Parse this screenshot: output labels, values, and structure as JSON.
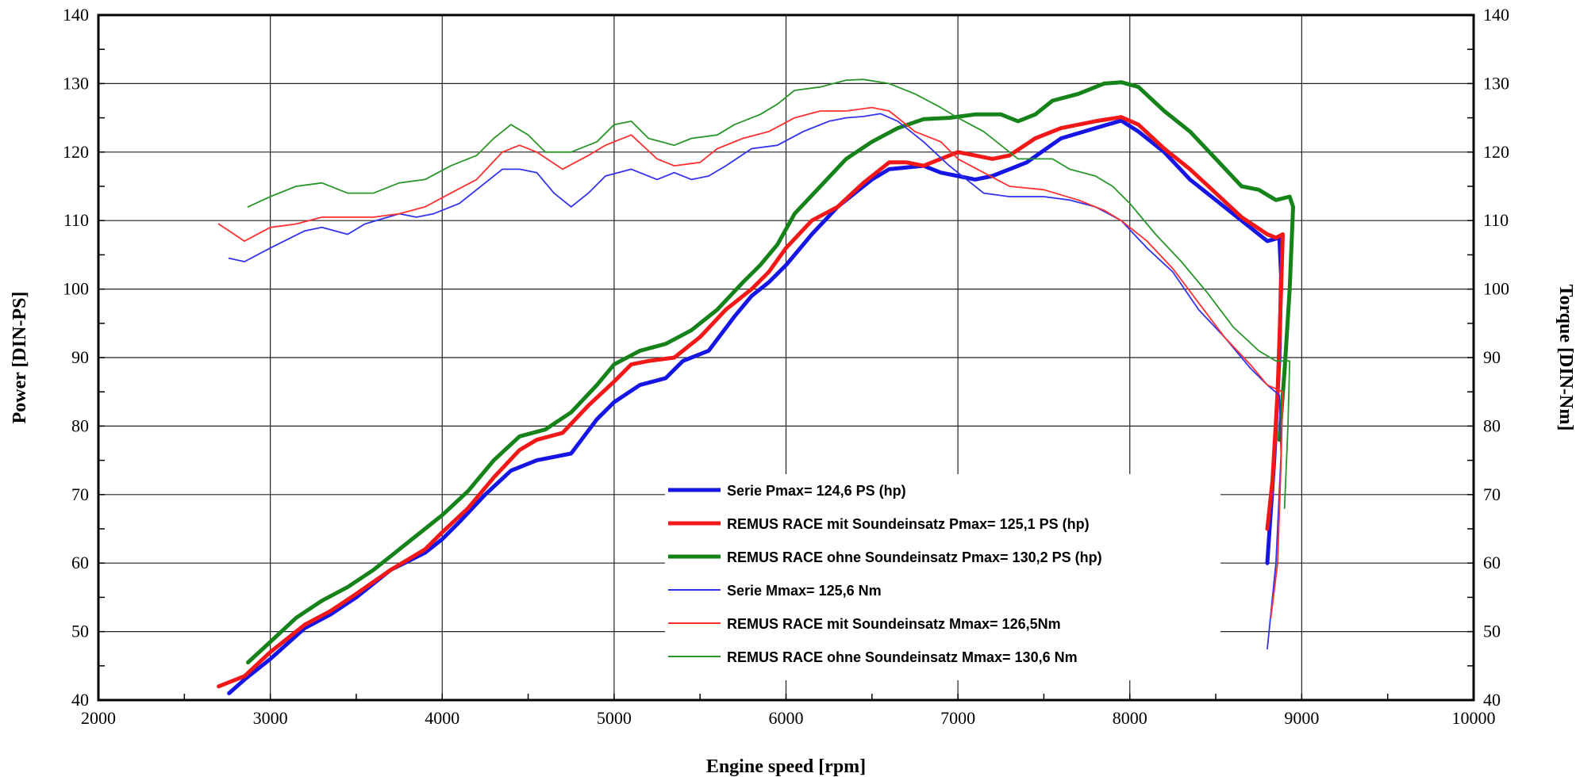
{
  "chart_data": {
    "type": "line",
    "xlabel": "Engine speed [rpm]",
    "ylabel_left": "Power [DIN-PS]",
    "ylabel_right": "Torque [DIN-Nm]",
    "xlim": [
      2000,
      10000
    ],
    "ylim": [
      40,
      140
    ],
    "x_ticks": [
      2000,
      3000,
      4000,
      5000,
      6000,
      7000,
      8000,
      9000,
      10000
    ],
    "y_ticks": [
      40,
      50,
      60,
      70,
      80,
      90,
      100,
      110,
      120,
      130,
      140
    ],
    "grid": true,
    "legend_position": "lower-center",
    "series": [
      {
        "name": "Serie Pmax= 124,6 PS (hp)",
        "color": "#1515e6",
        "thick": true,
        "points": [
          [
            2760,
            41
          ],
          [
            2850,
            43
          ],
          [
            3000,
            46
          ],
          [
            3200,
            50.5
          ],
          [
            3350,
            52.5
          ],
          [
            3500,
            55
          ],
          [
            3700,
            59
          ],
          [
            3900,
            61.5
          ],
          [
            4000,
            63.5
          ],
          [
            4100,
            66
          ],
          [
            4250,
            70
          ],
          [
            4400,
            73.5
          ],
          [
            4550,
            75
          ],
          [
            4750,
            76
          ],
          [
            4900,
            81
          ],
          [
            5000,
            83.5
          ],
          [
            5150,
            86
          ],
          [
            5300,
            87
          ],
          [
            5400,
            89.5
          ],
          [
            5550,
            91
          ],
          [
            5700,
            96
          ],
          [
            5800,
            99
          ],
          [
            5900,
            101
          ],
          [
            6000,
            103.5
          ],
          [
            6150,
            108
          ],
          [
            6300,
            112
          ],
          [
            6400,
            114
          ],
          [
            6500,
            116
          ],
          [
            6600,
            117.5
          ],
          [
            6800,
            118
          ],
          [
            6900,
            117
          ],
          [
            7000,
            116.5
          ],
          [
            7100,
            116
          ],
          [
            7200,
            116.5
          ],
          [
            7400,
            118.5
          ],
          [
            7600,
            122
          ],
          [
            7800,
            123.5
          ],
          [
            7950,
            124.6
          ],
          [
            8050,
            123
          ],
          [
            8200,
            120
          ],
          [
            8350,
            116
          ],
          [
            8500,
            113
          ],
          [
            8650,
            110
          ],
          [
            8800,
            107
          ],
          [
            8870,
            107.5
          ],
          [
            8880,
            102
          ],
          [
            8870,
            90
          ],
          [
            8840,
            75
          ],
          [
            8800,
            60
          ]
        ]
      },
      {
        "name": "REMUS RACE mit Soundeinsatz Pmax=  125,1 PS (hp)",
        "color": "#f21818",
        "thick": true,
        "points": [
          [
            2700,
            42
          ],
          [
            2850,
            43.5
          ],
          [
            3000,
            47
          ],
          [
            3200,
            51
          ],
          [
            3350,
            53
          ],
          [
            3500,
            55.5
          ],
          [
            3700,
            59
          ],
          [
            3900,
            62
          ],
          [
            4000,
            64.5
          ],
          [
            4150,
            68
          ],
          [
            4300,
            72.5
          ],
          [
            4450,
            76.5
          ],
          [
            4550,
            78
          ],
          [
            4700,
            79
          ],
          [
            4850,
            83
          ],
          [
            5000,
            86.5
          ],
          [
            5100,
            89
          ],
          [
            5200,
            89.5
          ],
          [
            5350,
            90
          ],
          [
            5500,
            93
          ],
          [
            5650,
            97
          ],
          [
            5800,
            100
          ],
          [
            5900,
            102.5
          ],
          [
            6000,
            106
          ],
          [
            6150,
            110
          ],
          [
            6300,
            112
          ],
          [
            6450,
            115.5
          ],
          [
            6600,
            118.5
          ],
          [
            6700,
            118.5
          ],
          [
            6800,
            118
          ],
          [
            6900,
            119
          ],
          [
            7000,
            120
          ],
          [
            7100,
            119.5
          ],
          [
            7200,
            119
          ],
          [
            7300,
            119.5
          ],
          [
            7450,
            122
          ],
          [
            7600,
            123.5
          ],
          [
            7800,
            124.5
          ],
          [
            7950,
            125.1
          ],
          [
            8050,
            124
          ],
          [
            8200,
            120.5
          ],
          [
            8350,
            117.5
          ],
          [
            8500,
            114
          ],
          [
            8650,
            110.5
          ],
          [
            8800,
            108
          ],
          [
            8850,
            107.5
          ],
          [
            8890,
            108
          ],
          [
            8880,
            100
          ],
          [
            8860,
            85
          ],
          [
            8830,
            72
          ],
          [
            8800,
            65
          ]
        ]
      },
      {
        "name": "REMUS RACE ohne Soundeinsatz Pmax= 130,2 PS (hp)",
        "color": "#16821a",
        "thick": true,
        "points": [
          [
            2870,
            45.5
          ],
          [
            3000,
            48.5
          ],
          [
            3150,
            52
          ],
          [
            3300,
            54.5
          ],
          [
            3450,
            56.5
          ],
          [
            3600,
            59
          ],
          [
            3750,
            62
          ],
          [
            3900,
            65
          ],
          [
            4000,
            67
          ],
          [
            4150,
            70.5
          ],
          [
            4300,
            75
          ],
          [
            4450,
            78.5
          ],
          [
            4600,
            79.5
          ],
          [
            4750,
            82
          ],
          [
            4900,
            86
          ],
          [
            5000,
            89
          ],
          [
            5150,
            91
          ],
          [
            5300,
            92
          ],
          [
            5450,
            94
          ],
          [
            5600,
            97
          ],
          [
            5750,
            101
          ],
          [
            5850,
            103.5
          ],
          [
            5950,
            106.5
          ],
          [
            6050,
            111
          ],
          [
            6200,
            115
          ],
          [
            6350,
            119
          ],
          [
            6500,
            121.5
          ],
          [
            6650,
            123.5
          ],
          [
            6800,
            124.8
          ],
          [
            6950,
            125
          ],
          [
            7100,
            125.5
          ],
          [
            7250,
            125.5
          ],
          [
            7350,
            124.5
          ],
          [
            7450,
            125.5
          ],
          [
            7550,
            127.5
          ],
          [
            7700,
            128.5
          ],
          [
            7850,
            130
          ],
          [
            7950,
            130.2
          ],
          [
            8050,
            129.5
          ],
          [
            8200,
            126
          ],
          [
            8350,
            123
          ],
          [
            8500,
            119
          ],
          [
            8650,
            115
          ],
          [
            8750,
            114.5
          ],
          [
            8850,
            113
          ],
          [
            8930,
            113.5
          ],
          [
            8950,
            112
          ],
          [
            8930,
            100
          ],
          [
            8900,
            88
          ],
          [
            8870,
            78
          ]
        ]
      },
      {
        "name": "Serie Mmax= 125,6 Nm",
        "color": "#3333ee",
        "thick": false,
        "points": [
          [
            2760,
            104.5
          ],
          [
            2850,
            104
          ],
          [
            3000,
            106
          ],
          [
            3200,
            108.5
          ],
          [
            3300,
            109
          ],
          [
            3450,
            108
          ],
          [
            3550,
            109.5
          ],
          [
            3750,
            111
          ],
          [
            3850,
            110.5
          ],
          [
            3950,
            111
          ],
          [
            4100,
            112.5
          ],
          [
            4250,
            115.5
          ],
          [
            4350,
            117.5
          ],
          [
            4450,
            117.5
          ],
          [
            4550,
            117
          ],
          [
            4650,
            114
          ],
          [
            4750,
            112
          ],
          [
            4850,
            114
          ],
          [
            4950,
            116.5
          ],
          [
            5100,
            117.5
          ],
          [
            5250,
            116
          ],
          [
            5350,
            117
          ],
          [
            5450,
            116
          ],
          [
            5550,
            116.5
          ],
          [
            5650,
            118
          ],
          [
            5800,
            120.5
          ],
          [
            5950,
            121
          ],
          [
            6100,
            123
          ],
          [
            6250,
            124.5
          ],
          [
            6350,
            125
          ],
          [
            6450,
            125.2
          ],
          [
            6550,
            125.6
          ],
          [
            6650,
            124.5
          ],
          [
            6800,
            121.5
          ],
          [
            6950,
            118
          ],
          [
            7050,
            116
          ],
          [
            7150,
            114
          ],
          [
            7300,
            113.5
          ],
          [
            7500,
            113.5
          ],
          [
            7650,
            113
          ],
          [
            7800,
            112
          ],
          [
            7950,
            110
          ],
          [
            8100,
            106
          ],
          [
            8250,
            102.5
          ],
          [
            8400,
            97
          ],
          [
            8550,
            93
          ],
          [
            8700,
            88.5
          ],
          [
            8800,
            86
          ],
          [
            8870,
            84.5
          ],
          [
            8880,
            76
          ],
          [
            8850,
            60
          ],
          [
            8800,
            47.5
          ]
        ]
      },
      {
        "name": "REMUS RACE mit Soundeinsatz Mmax= 126,5Nm",
        "color": "#ff3030",
        "thick": false,
        "points": [
          [
            2700,
            109.5
          ],
          [
            2850,
            107
          ],
          [
            3000,
            109
          ],
          [
            3150,
            109.5
          ],
          [
            3300,
            110.5
          ],
          [
            3450,
            110.5
          ],
          [
            3600,
            110.5
          ],
          [
            3750,
            111
          ],
          [
            3900,
            112
          ],
          [
            4050,
            114
          ],
          [
            4200,
            116
          ],
          [
            4350,
            120
          ],
          [
            4450,
            121
          ],
          [
            4550,
            120
          ],
          [
            4700,
            117.5
          ],
          [
            4850,
            119.5
          ],
          [
            4950,
            121
          ],
          [
            5100,
            122.5
          ],
          [
            5250,
            119
          ],
          [
            5350,
            118
          ],
          [
            5500,
            118.5
          ],
          [
            5600,
            120.5
          ],
          [
            5750,
            122
          ],
          [
            5900,
            123
          ],
          [
            6050,
            125
          ],
          [
            6200,
            126
          ],
          [
            6350,
            126
          ],
          [
            6500,
            126.5
          ],
          [
            6600,
            126
          ],
          [
            6750,
            123
          ],
          [
            6900,
            121.5
          ],
          [
            7000,
            119
          ],
          [
            7150,
            117
          ],
          [
            7300,
            115
          ],
          [
            7500,
            114.5
          ],
          [
            7700,
            113
          ],
          [
            7850,
            111.5
          ],
          [
            7950,
            110
          ],
          [
            8100,
            107
          ],
          [
            8250,
            103
          ],
          [
            8400,
            98
          ],
          [
            8550,
            93
          ],
          [
            8700,
            89
          ],
          [
            8800,
            86
          ],
          [
            8890,
            85
          ],
          [
            8880,
            75
          ],
          [
            8860,
            60
          ],
          [
            8820,
            52
          ]
        ]
      },
      {
        "name": "REMUS RACE ohne Soundeinsatz Mmax= 130,6 Nm",
        "color": "#2a962a",
        "thick": false,
        "points": [
          [
            2870,
            112
          ],
          [
            3000,
            113.5
          ],
          [
            3150,
            115
          ],
          [
            3300,
            115.5
          ],
          [
            3450,
            114
          ],
          [
            3600,
            114
          ],
          [
            3750,
            115.5
          ],
          [
            3900,
            116
          ],
          [
            4050,
            118
          ],
          [
            4200,
            119.5
          ],
          [
            4300,
            122
          ],
          [
            4400,
            124
          ],
          [
            4500,
            122.5
          ],
          [
            4600,
            120
          ],
          [
            4750,
            120
          ],
          [
            4900,
            121.5
          ],
          [
            5000,
            124
          ],
          [
            5100,
            124.5
          ],
          [
            5200,
            122
          ],
          [
            5350,
            121
          ],
          [
            5450,
            122
          ],
          [
            5600,
            122.5
          ],
          [
            5700,
            124
          ],
          [
            5850,
            125.5
          ],
          [
            5950,
            127
          ],
          [
            6050,
            129
          ],
          [
            6200,
            129.5
          ],
          [
            6350,
            130.5
          ],
          [
            6450,
            130.6
          ],
          [
            6600,
            130
          ],
          [
            6750,
            128.5
          ],
          [
            6900,
            126.5
          ],
          [
            7000,
            125
          ],
          [
            7150,
            123
          ],
          [
            7250,
            121
          ],
          [
            7350,
            119
          ],
          [
            7450,
            119
          ],
          [
            7550,
            119
          ],
          [
            7650,
            117.5
          ],
          [
            7800,
            116.5
          ],
          [
            7900,
            115
          ],
          [
            8000,
            112.5
          ],
          [
            8150,
            108
          ],
          [
            8300,
            104
          ],
          [
            8450,
            99.5
          ],
          [
            8600,
            94.5
          ],
          [
            8750,
            91
          ],
          [
            8850,
            89.5
          ],
          [
            8930,
            89.5
          ],
          [
            8920,
            80
          ],
          [
            8900,
            68
          ]
        ]
      }
    ]
  }
}
